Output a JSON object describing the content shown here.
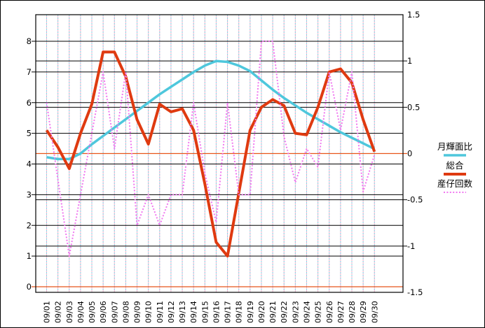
{
  "chart_data": {
    "type": "line",
    "categories": [
      "09/01",
      "09/02",
      "09/03",
      "09/04",
      "09/05",
      "09/06",
      "09/07",
      "09/08",
      "09/09",
      "09/10",
      "09/11",
      "09/12",
      "09/13",
      "09/14",
      "09/15",
      "09/16",
      "09/17",
      "09/18",
      "09/19",
      "09/20",
      "09/21",
      "09/22",
      "09/23",
      "09/24",
      "09/25",
      "09/26",
      "09/27",
      "09/28",
      "09/29",
      "09/30"
    ],
    "series": [
      {
        "name": "月輝面比",
        "axis": "right",
        "line": "solid",
        "width": 3.5,
        "color": "#4ec7dc",
        "values": [
          -0.04,
          -0.06,
          -0.06,
          0.0,
          0.1,
          0.19,
          0.28,
          0.37,
          0.46,
          0.55,
          0.64,
          0.72,
          0.8,
          0.88,
          0.95,
          1.0,
          0.99,
          0.95,
          0.89,
          0.79,
          0.69,
          0.6,
          0.52,
          0.44,
          0.37,
          0.3,
          0.23,
          0.17,
          0.11,
          0.05
        ]
      },
      {
        "name": "総合",
        "axis": "left",
        "line": "solid",
        "width": 4,
        "color": "#df3a10",
        "values": [
          5.1,
          4.55,
          3.85,
          5.0,
          5.95,
          7.65,
          7.65,
          6.85,
          5.45,
          4.65,
          5.95,
          5.7,
          5.8,
          5.1,
          3.35,
          1.45,
          1.0,
          3.05,
          5.1,
          5.85,
          6.1,
          5.9,
          5.0,
          4.95,
          5.85,
          7.0,
          7.1,
          6.65,
          5.45,
          4.4
        ]
      },
      {
        "name": "産仔回数",
        "axis": "left",
        "line": "dotted",
        "width": 2,
        "color": "#f078f0",
        "values": [
          6.0,
          3.5,
          1.0,
          3.0,
          5.0,
          7.0,
          4.5,
          7.0,
          2.0,
          3.0,
          2.0,
          3.0,
          3.0,
          6.0,
          3.7,
          2.1,
          6.0,
          3.0,
          3.0,
          8.0,
          8.0,
          4.9,
          3.4,
          4.5,
          3.9,
          7.0,
          5.1,
          7.0,
          3.1,
          4.3
        ]
      }
    ],
    "left_axis": {
      "ticks": [
        "0",
        "1",
        "2",
        "3",
        "4",
        "5",
        "6",
        "7",
        "8"
      ],
      "range": [
        0,
        8.87
      ]
    },
    "right_axis": {
      "ticks": [
        "-1.5",
        "-1",
        "-0.5",
        "0",
        "0.5",
        "1",
        "1.5"
      ],
      "range": [
        -1.5,
        1.5
      ]
    },
    "legend_position": "right",
    "grid": {
      "h_line_color": "#000000",
      "v_line_pink": "#ffaec9",
      "v_line_cyan": "#7fdbe9",
      "zero_line_color": "#e8551a",
      "border_color": "#000000",
      "background": "#ffffff"
    },
    "legend": {
      "items": [
        {
          "label": "月輝面比"
        },
        {
          "label": "総合"
        },
        {
          "label": "産仔回数"
        }
      ]
    }
  }
}
